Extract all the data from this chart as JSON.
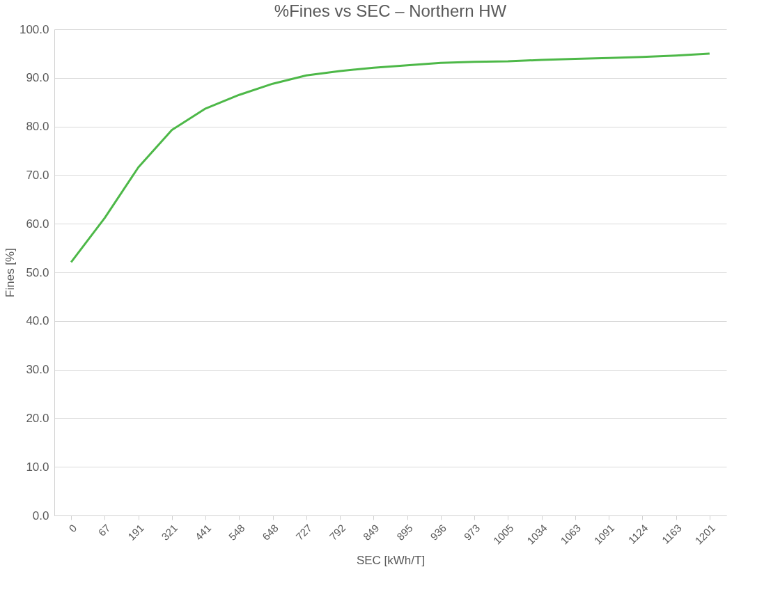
{
  "chart_data": {
    "type": "line",
    "title": "%Fines vs SEC – Northern HW",
    "xlabel": "SEC [kWh/T]",
    "ylabel": "Fines [%]",
    "categories": [
      "0",
      "67",
      "191",
      "321",
      "441",
      "548",
      "648",
      "727",
      "792",
      "849",
      "895",
      "936",
      "973",
      "1005",
      "1034",
      "1063",
      "1091",
      "1124",
      "1163",
      "1201"
    ],
    "series": [
      {
        "color": "#4db848",
        "values": [
          52.1,
          61.2,
          71.6,
          79.3,
          83.7,
          86.5,
          88.8,
          90.5,
          91.4,
          92.1,
          92.6,
          93.1,
          93.3,
          93.4,
          93.7,
          93.9,
          94.1,
          94.3,
          94.6,
          95.0
        ]
      }
    ],
    "ylim": [
      0,
      100
    ],
    "yticks": [
      {
        "value": 0,
        "label": "0.0"
      },
      {
        "value": 10,
        "label": "10.0"
      },
      {
        "value": 20,
        "label": "20.0"
      },
      {
        "value": 30,
        "label": "30.0"
      },
      {
        "value": 40,
        "label": "40.0"
      },
      {
        "value": 50,
        "label": "50.0"
      },
      {
        "value": 60,
        "label": "60.0"
      },
      {
        "value": 70,
        "label": "70.0"
      },
      {
        "value": 80,
        "label": "80.0"
      },
      {
        "value": 90,
        "label": "90.0"
      },
      {
        "value": 100,
        "label": "100.0"
      }
    ],
    "grid": "y",
    "legend": false,
    "marker": "none",
    "line_style": "solid"
  }
}
